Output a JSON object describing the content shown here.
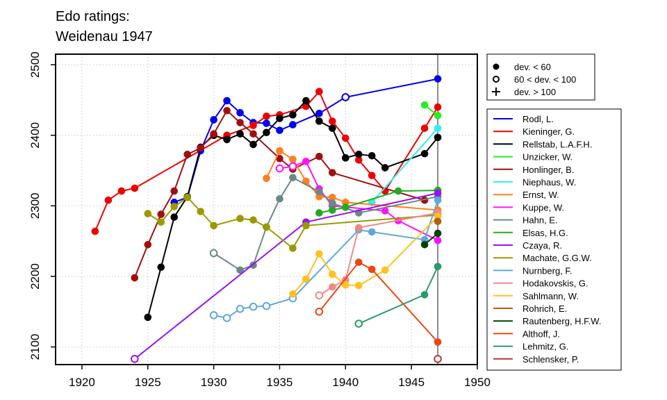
{
  "chart_data": {
    "type": "line",
    "title_lines": [
      "Edo ratings:",
      "Weidenau 1947"
    ],
    "xlabel": "",
    "ylabel": "",
    "xlim": [
      1918,
      1950
    ],
    "ylim": [
      2075,
      2515
    ],
    "x_ticks": [
      1920,
      1925,
      1930,
      1935,
      1940,
      1945,
      1950
    ],
    "y_ticks": [
      2100,
      2200,
      2300,
      2400,
      2500
    ],
    "grid": "dotted",
    "event_year": 1947,
    "marker_legend": {
      "placement": "top-right, outside plot",
      "items": [
        {
          "symbol": "filled-circle",
          "label": "dev. < 60"
        },
        {
          "symbol": "open-circle",
          "label": "60 < dev. < 100"
        },
        {
          "symbol": "plus",
          "label": "dev. > 100"
        }
      ]
    },
    "series": [
      {
        "name": "Rodl, L.",
        "color": "#0000ee",
        "points": [
          [
            1927,
            2305,
            "f"
          ],
          [
            1928,
            2312,
            "f"
          ],
          [
            1929,
            2378,
            "f"
          ],
          [
            1930,
            2422,
            "f"
          ],
          [
            1931,
            2449,
            "f"
          ],
          [
            1932,
            2432,
            "f"
          ],
          [
            1933,
            2418,
            "f"
          ],
          [
            1934,
            2417,
            "f"
          ],
          [
            1935,
            2407,
            "f"
          ],
          [
            1936,
            2415,
            "f"
          ],
          [
            1938,
            2431,
            "f"
          ],
          [
            1940,
            2454,
            "o"
          ],
          [
            1947,
            2480,
            "f"
          ]
        ]
      },
      {
        "name": "Kieninger, G.",
        "color": "#ee0000",
        "points": [
          [
            1921,
            2264,
            "f"
          ],
          [
            1922,
            2308,
            "f"
          ],
          [
            1923,
            2321,
            "f"
          ],
          [
            1924,
            2325,
            "f"
          ],
          [
            1931,
            2400,
            "f"
          ],
          [
            1933,
            2414,
            "f"
          ],
          [
            1934,
            2427,
            "f"
          ],
          [
            1935,
            2429,
            "f"
          ],
          [
            1937,
            2441,
            "f"
          ],
          [
            1938,
            2462,
            "f"
          ],
          [
            1939,
            2420,
            "f"
          ],
          [
            1940,
            2396,
            "f"
          ],
          [
            1941,
            2365,
            "f"
          ],
          [
            1942,
            2343,
            "f"
          ],
          [
            1943,
            2321,
            "f"
          ],
          [
            1946,
            2410,
            "f"
          ],
          [
            1947,
            2440,
            "f"
          ]
        ]
      },
      {
        "name": "Rellstab, L.A.F.H.",
        "color": "#000000",
        "points": [
          [
            1925,
            2142,
            "f"
          ],
          [
            1926,
            2213,
            "f"
          ],
          [
            1927,
            2284,
            "f"
          ],
          [
            1928,
            2313,
            "f"
          ],
          [
            1929,
            2383,
            "f"
          ],
          [
            1930,
            2400,
            "f"
          ],
          [
            1931,
            2394,
            "f"
          ],
          [
            1932,
            2402,
            "f"
          ],
          [
            1933,
            2387,
            "f"
          ],
          [
            1934,
            2404,
            "f"
          ],
          [
            1935,
            2424,
            "f"
          ],
          [
            1936,
            2429,
            "f"
          ],
          [
            1937,
            2449,
            "f"
          ],
          [
            1938,
            2420,
            "f"
          ],
          [
            1939,
            2410,
            "f"
          ],
          [
            1940,
            2368,
            "f"
          ],
          [
            1941,
            2373,
            "f"
          ],
          [
            1942,
            2371,
            "f"
          ],
          [
            1943,
            2354,
            "f"
          ],
          [
            1946,
            2374,
            "f"
          ],
          [
            1947,
            2397,
            "f"
          ]
        ]
      },
      {
        "name": "Unzicker, W.",
        "color": "#22ee22",
        "points": [
          [
            1946,
            2443,
            "f"
          ],
          [
            1947,
            2428,
            "f"
          ]
        ]
      },
      {
        "name": "Honlinger, B.",
        "color": "#a01010",
        "points": [
          [
            1924,
            2198,
            "f"
          ],
          [
            1925,
            2245,
            "f"
          ],
          [
            1926,
            2288,
            "f"
          ],
          [
            1927,
            2321,
            "f"
          ],
          [
            1928,
            2373,
            "f"
          ],
          [
            1929,
            2382,
            "f"
          ],
          [
            1930,
            2402,
            "f"
          ],
          [
            1931,
            2435,
            "f"
          ],
          [
            1932,
            2418,
            "f"
          ],
          [
            1933,
            2402,
            "f"
          ],
          [
            1935,
            2367,
            "f"
          ],
          [
            1936,
            2352,
            "f"
          ],
          [
            1938,
            2370,
            "f"
          ],
          [
            1939,
            2347,
            "f"
          ],
          [
            1946,
            2308,
            "f"
          ]
        ]
      },
      {
        "name": "Niephaus, W.",
        "color": "#33eeee",
        "points": [
          [
            1942,
            2305,
            "f"
          ],
          [
            1947,
            2410,
            "f"
          ]
        ]
      },
      {
        "name": "Ernst, W.",
        "color": "#ff7f22",
        "points": [
          [
            1934,
            2339,
            "f"
          ],
          [
            1935,
            2378,
            "f"
          ],
          [
            1936,
            2366,
            "f"
          ],
          [
            1937,
            2335,
            "f"
          ],
          [
            1938,
            2313,
            "f"
          ],
          [
            1939,
            2312,
            "f"
          ],
          [
            1940,
            2305,
            "f"
          ],
          [
            1947,
            2294,
            "f"
          ]
        ]
      },
      {
        "name": "Kuppe, W.",
        "color": "#ff11ff",
        "points": [
          [
            1935,
            2353,
            "o"
          ],
          [
            1936,
            2356,
            "o"
          ],
          [
            1937,
            2363,
            "f"
          ],
          [
            1938,
            2324,
            "f"
          ],
          [
            1939,
            2300,
            "f"
          ],
          [
            1943,
            2293,
            "f"
          ],
          [
            1944,
            2279,
            "f"
          ],
          [
            1947,
            2251,
            "f"
          ]
        ]
      },
      {
        "name": "Hahn, E.",
        "color": "#6b8888",
        "points": [
          [
            1930,
            2233,
            "o"
          ],
          [
            1932,
            2209,
            "f"
          ],
          [
            1933,
            2216,
            "f"
          ],
          [
            1934,
            2270,
            "f"
          ],
          [
            1935,
            2310,
            "f"
          ],
          [
            1936,
            2340,
            "f"
          ],
          [
            1938,
            2320,
            "f"
          ],
          [
            1939,
            2304,
            "f"
          ],
          [
            1941,
            2290,
            "f"
          ],
          [
            1947,
            2313,
            "f"
          ]
        ]
      },
      {
        "name": "Elsas, H.G.",
        "color": "#22aa22",
        "points": [
          [
            1938,
            2290,
            "f"
          ],
          [
            1939,
            2294,
            "f"
          ],
          [
            1940,
            2298,
            "f"
          ],
          [
            1944,
            2321,
            "f"
          ],
          [
            1947,
            2322,
            "f"
          ]
        ]
      },
      {
        "name": "Czaya, R.",
        "color": "#9911ee",
        "points": [
          [
            1924,
            2083,
            "o"
          ],
          [
            1937,
            2277,
            "f"
          ],
          [
            1947,
            2318,
            "f"
          ]
        ]
      },
      {
        "name": "Machate, G.G.W.",
        "color": "#999900",
        "points": [
          [
            1925,
            2289,
            "f"
          ],
          [
            1926,
            2277,
            "f"
          ],
          [
            1927,
            2299,
            "f"
          ],
          [
            1928,
            2312,
            "f"
          ],
          [
            1929,
            2292,
            "f"
          ],
          [
            1930,
            2272,
            "f"
          ],
          [
            1932,
            2282,
            "f"
          ],
          [
            1933,
            2280,
            "f"
          ],
          [
            1934,
            2270,
            "f"
          ],
          [
            1936,
            2240,
            "f"
          ],
          [
            1937,
            2272,
            "f"
          ],
          [
            1947,
            2287,
            "f"
          ]
        ]
      },
      {
        "name": "Nurnberg, F.",
        "color": "#5da8e0",
        "points": [
          [
            1930,
            2145,
            "o"
          ],
          [
            1931,
            2141,
            "o"
          ],
          [
            1932,
            2154,
            "o"
          ],
          [
            1933,
            2157,
            "o"
          ],
          [
            1934,
            2158,
            "o"
          ],
          [
            1936,
            2169,
            "o"
          ],
          [
            1941,
            2266,
            "f"
          ],
          [
            1942,
            2263,
            "f"
          ],
          [
            1946,
            2252,
            "f"
          ],
          [
            1947,
            2308,
            "f"
          ]
        ]
      },
      {
        "name": "Hodakovskis, G.",
        "color": "#f08888",
        "points": [
          [
            1938,
            2173,
            "o"
          ],
          [
            1939,
            2185,
            "f"
          ],
          [
            1940,
            2195,
            "f"
          ],
          [
            1941,
            2269,
            "f"
          ],
          [
            1947,
            2290,
            "f"
          ]
        ]
      },
      {
        "name": "Sahlmann, W.",
        "color": "#ffc020",
        "points": [
          [
            1936,
            2175,
            "f"
          ],
          [
            1937,
            2196,
            "f"
          ],
          [
            1938,
            2232,
            "f"
          ],
          [
            1939,
            2203,
            "f"
          ],
          [
            1940,
            2188,
            "f"
          ],
          [
            1941,
            2187,
            "f"
          ],
          [
            1943,
            2209,
            "f"
          ],
          [
            1947,
            2285,
            "f"
          ]
        ]
      },
      {
        "name": "Rohrich, E.",
        "color": "#b06010",
        "points": [
          [
            1947,
            2278,
            "f"
          ]
        ]
      },
      {
        "name": "Rautenberg, H.F.W.",
        "color": "#004400",
        "points": [
          [
            1946,
            2245,
            "f"
          ],
          [
            1947,
            2261,
            "f"
          ]
        ]
      },
      {
        "name": "Althoff, J.",
        "color": "#ee4411",
        "points": [
          [
            1938,
            2150,
            "o"
          ],
          [
            1941,
            2220,
            "f"
          ],
          [
            1942,
            2210,
            "f"
          ],
          [
            1947,
            2107,
            "f"
          ]
        ]
      },
      {
        "name": "Lehmitz, G.",
        "color": "#2a9a6a",
        "points": [
          [
            1941,
            2133,
            "o"
          ],
          [
            1946,
            2174,
            "f"
          ],
          [
            1947,
            2214,
            "f"
          ]
        ]
      },
      {
        "name": "Schlensker, P.",
        "color": "#b03838",
        "points": [
          [
            1947,
            2083,
            "o"
          ]
        ]
      }
    ]
  }
}
